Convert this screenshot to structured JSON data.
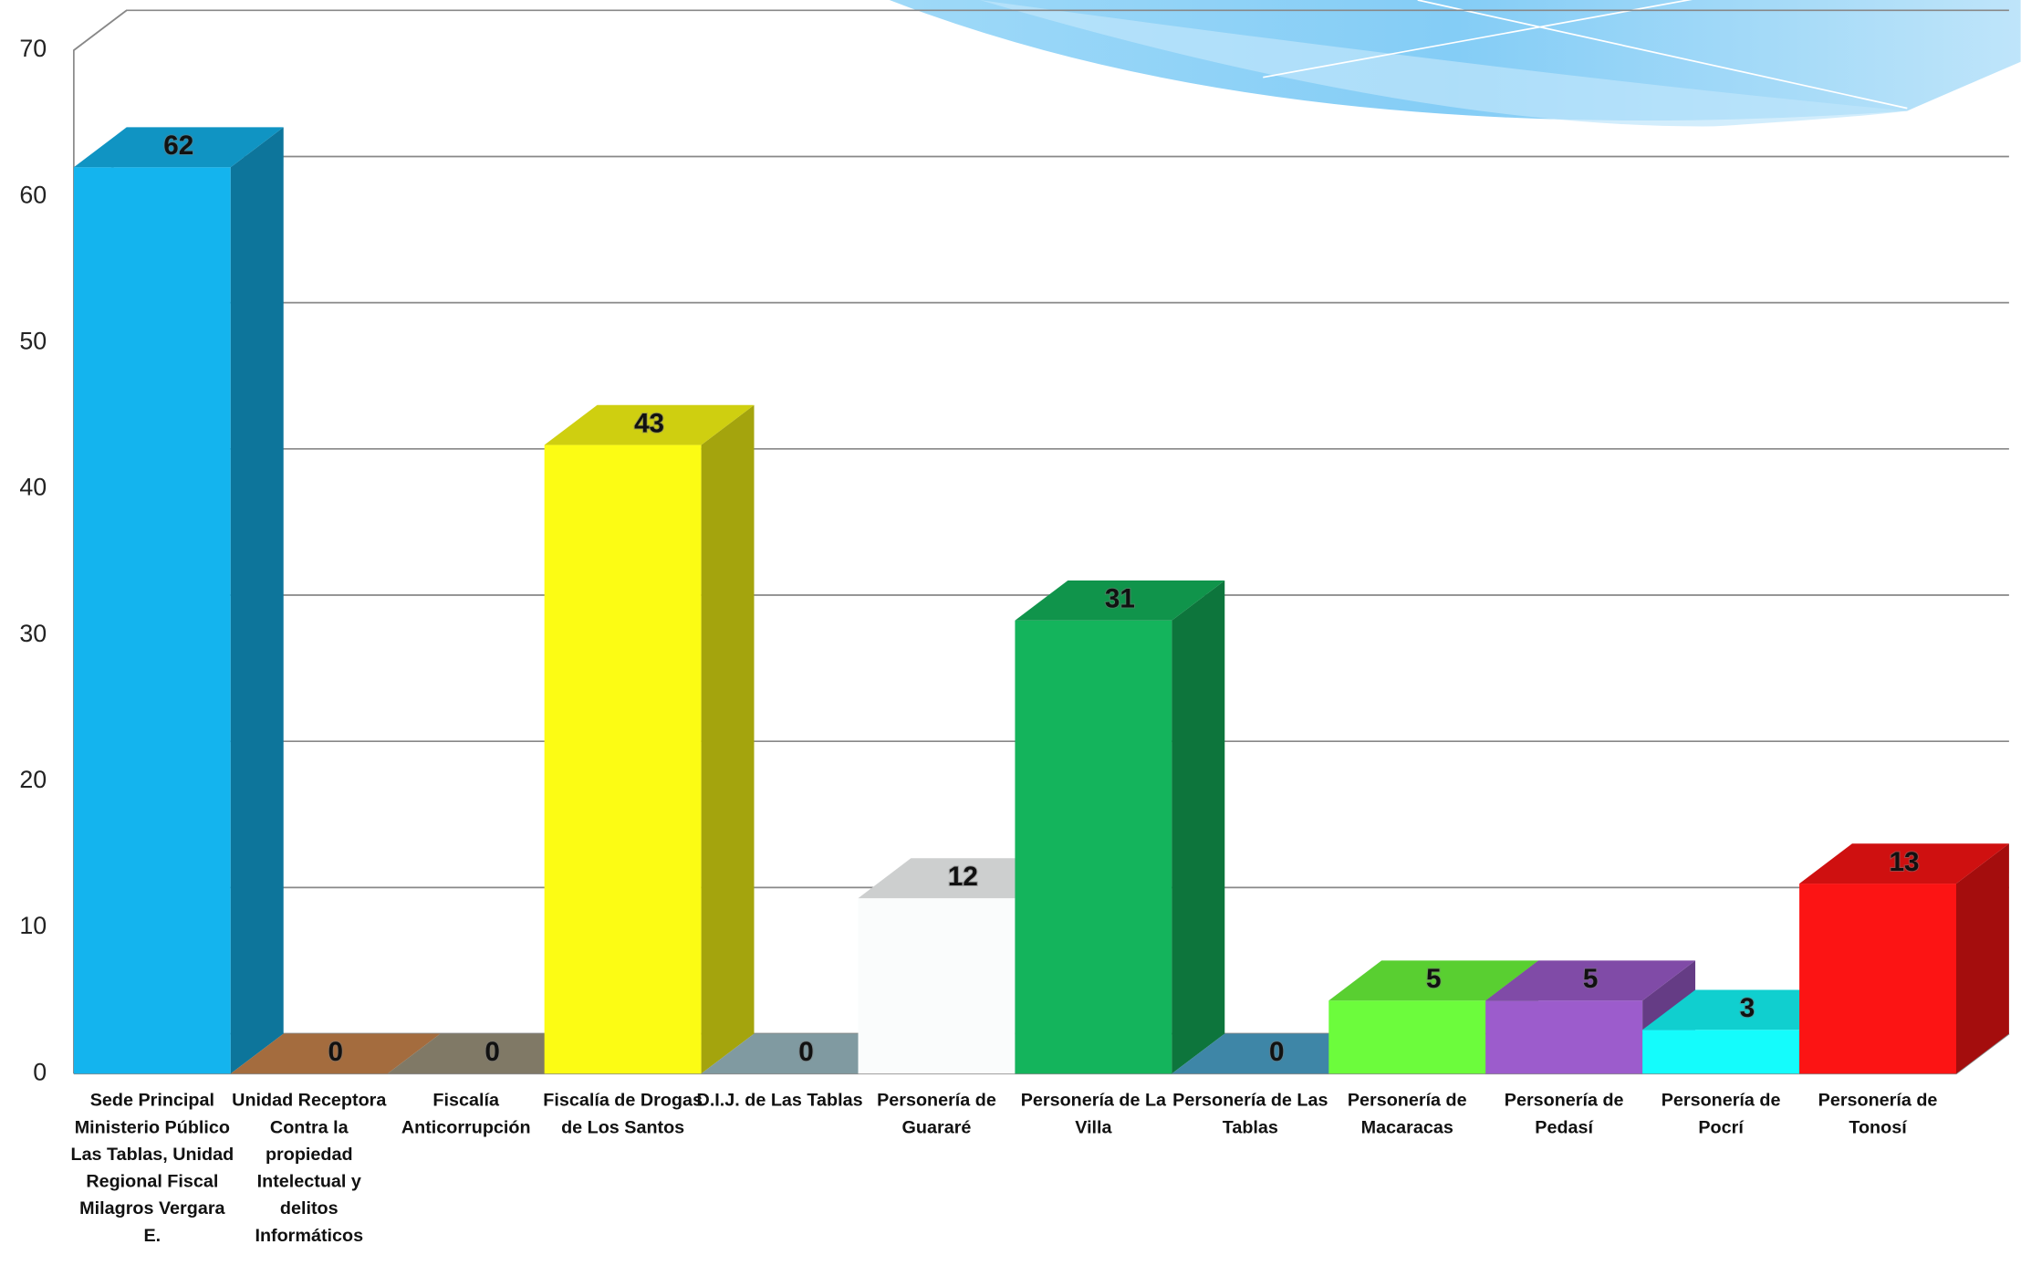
{
  "chart_data": {
    "type": "bar3d",
    "categories": [
      "Sede Principal Ministerio Público Las Tablas, Unidad Regional Fiscal Milagros Vergara E.",
      "Unidad Receptora Contra la propiedad Intelectual y delitos Informáticos",
      "Fiscalía Anticorrupción",
      "Fiscalía de Drogas de Los Santos",
      "D.I.J. de Las Tablas",
      "Personería de Guararé",
      "Personería de La Villa",
      "Personería de Las Tablas",
      "Personería de Macaracas",
      "Personería de Pedasí",
      "Personería de Pocrí",
      "Personería de Tonosí"
    ],
    "values": [
      62,
      0,
      0,
      43,
      0,
      12,
      31,
      0,
      5,
      5,
      3,
      13
    ],
    "colors": [
      "#14b4ee",
      "#c8844c",
      "#9c947c",
      "#fcfc14",
      "#9cbcc4",
      "#fafcfc",
      "#14b45c",
      "#4ca4cc",
      "#6cfc3c",
      "#9c5ccc",
      "#14fcfc",
      "#fc1414"
    ],
    "ylim": [
      0,
      70
    ],
    "yticks": [
      0,
      10,
      20,
      30,
      40,
      50,
      60,
      70
    ],
    "grid": true
  }
}
